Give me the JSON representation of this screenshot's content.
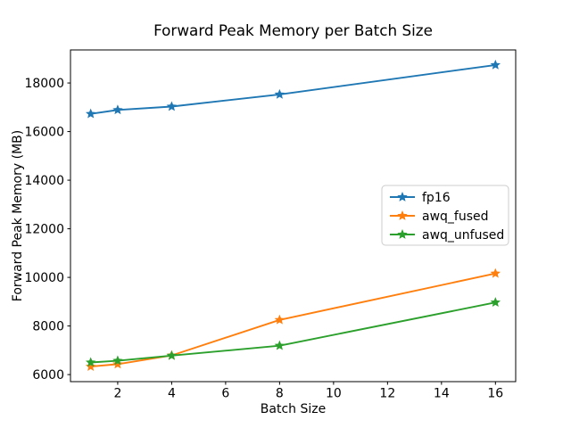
{
  "chart_data": {
    "type": "line",
    "title": "Forward Peak Memory per Batch Size",
    "xlabel": "Batch Size",
    "ylabel": "Forward Peak Memory (MB)",
    "x": [
      1,
      2,
      4,
      8,
      16
    ],
    "series": [
      {
        "name": "fp16",
        "color": "#1f77b4",
        "values": [
          16730,
          16890,
          17030,
          17530,
          18740
        ]
      },
      {
        "name": "awq_fused",
        "color": "#ff7f0e",
        "values": [
          6330,
          6430,
          6790,
          8250,
          10160
        ]
      },
      {
        "name": "awq_unfused",
        "color": "#2ca02c",
        "values": [
          6500,
          6570,
          6780,
          7190,
          8970
        ]
      }
    ],
    "marker": "star",
    "xticks": [
      2,
      4,
      6,
      8,
      10,
      12,
      14,
      16
    ],
    "yticks": [
      6000,
      8000,
      10000,
      12000,
      14000,
      16000,
      18000
    ],
    "xlim": [
      0.25,
      16.75
    ],
    "ylim": [
      5710,
      19360
    ],
    "grid": false,
    "legend_position": "center right",
    "spine_color": "#000000",
    "legend_border_color": "#cccccc",
    "background_color": "#ffffff"
  }
}
